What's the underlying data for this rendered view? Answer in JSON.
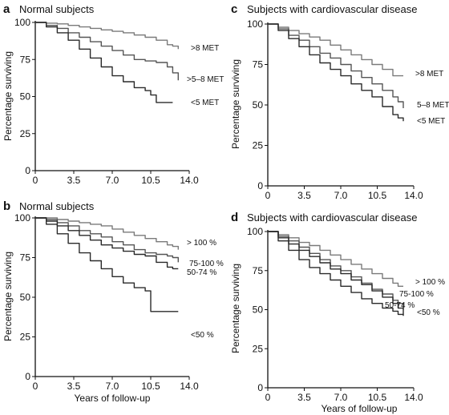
{
  "colors": {
    "axis": "#111111",
    "series_dark": "#2a2a2a",
    "series_mid": "#555555",
    "series_light": "#7a7a7a"
  },
  "chart_data": [
    {
      "id": "a",
      "panel_label": "a",
      "type": "line",
      "title": "Normal subjects",
      "xlabel": "",
      "ylabel": "Percentage surviving",
      "xlim": [
        0,
        14.0
      ],
      "ylim": [
        0,
        100
      ],
      "xticks": [
        "0",
        "3.5",
        "7.0",
        "10.5",
        "14.0"
      ],
      "yticks": [
        "0",
        "25",
        "50",
        "75",
        "100"
      ],
      "grid": false,
      "series": [
        {
          "name": ">8 MET",
          "x": [
            0,
            1,
            2,
            3,
            4,
            5,
            6,
            7,
            8,
            9,
            10,
            11,
            12,
            12.5,
            13
          ],
          "y": [
            100,
            99.5,
            99,
            98,
            97,
            96,
            95,
            94,
            93,
            91.5,
            90,
            88,
            85,
            84,
            82
          ]
        },
        {
          "name": ">5–8 MET",
          "x": [
            0,
            1,
            2,
            3,
            4,
            5,
            6,
            7,
            8,
            9,
            10,
            11,
            12,
            12.5,
            13
          ],
          "y": [
            100,
            98,
            96,
            93,
            90,
            87,
            84,
            81,
            78,
            75,
            74,
            73,
            70,
            66,
            61
          ]
        },
        {
          "name": "<5 MET",
          "x": [
            0,
            1,
            2,
            3,
            4,
            5,
            6,
            7,
            8,
            9,
            10,
            10.5,
            11,
            12,
            12.5
          ],
          "y": [
            100,
            97,
            93,
            88,
            82,
            76,
            70,
            64,
            60,
            56,
            54,
            51,
            46,
            46,
            46
          ]
        }
      ]
    },
    {
      "id": "b",
      "panel_label": "b",
      "type": "line",
      "title": "Normal subjects",
      "xlabel": "Years of follow-up",
      "ylabel": "Percentage surviving",
      "xlim": [
        0,
        14.0
      ],
      "ylim": [
        0,
        100
      ],
      "xticks": [
        "0",
        "3.5",
        "7.0",
        "10.5",
        "14.0"
      ],
      "yticks": [
        "0",
        "25",
        "50",
        "75",
        "100"
      ],
      "grid": false,
      "series": [
        {
          "name": "> 100 %",
          "x": [
            0,
            1,
            2,
            3,
            4,
            5,
            6,
            7,
            8,
            9,
            10,
            11,
            12,
            12.5,
            13
          ],
          "y": [
            100,
            100,
            99,
            98,
            97,
            96,
            95,
            93,
            91,
            89,
            87,
            85,
            83,
            82,
            80
          ]
        },
        {
          "name": "75-100 %",
          "x": [
            0,
            1,
            2,
            3,
            4,
            5,
            6,
            7,
            8,
            9,
            10,
            11,
            12,
            12.5,
            13
          ],
          "y": [
            100,
            99,
            97,
            95,
            92,
            90,
            88,
            85,
            83,
            80,
            78,
            77,
            76,
            75,
            72
          ]
        },
        {
          "name": "50-74 %",
          "x": [
            0,
            1,
            2,
            3,
            4,
            5,
            6,
            7,
            8,
            9,
            10,
            11,
            12,
            12.5,
            13
          ],
          "y": [
            100,
            98,
            95,
            92,
            89,
            86,
            83,
            81,
            79,
            77,
            76,
            72,
            69,
            68,
            68
          ]
        },
        {
          "name": "<50 %",
          "x": [
            0,
            1,
            2,
            3,
            4,
            5,
            6,
            7,
            8,
            9,
            10,
            10.5,
            11,
            12,
            13
          ],
          "y": [
            100,
            96,
            90,
            84,
            78,
            73,
            68,
            63,
            59,
            56,
            54,
            41,
            41,
            41,
            41
          ]
        }
      ]
    },
    {
      "id": "c",
      "panel_label": "c",
      "type": "line",
      "title": "Subjects with cardiovascular disease",
      "xlabel": "",
      "ylabel": "Percentage surviving",
      "xlim": [
        0,
        14.0
      ],
      "ylim": [
        0,
        100
      ],
      "xticks": [
        "0",
        "3.5",
        "7.0",
        "10.5",
        "14.0"
      ],
      "yticks": [
        "0",
        "25",
        "50",
        "75",
        "100"
      ],
      "grid": false,
      "series": [
        {
          "name": ">8 MET",
          "x": [
            0,
            1,
            2,
            3,
            4,
            5,
            6,
            7,
            8,
            9,
            10,
            11,
            12,
            12.5,
            13
          ],
          "y": [
            100,
            98,
            96,
            94,
            92,
            90,
            87,
            84,
            81,
            78,
            75,
            72,
            68,
            68,
            68
          ]
        },
        {
          "name": "5–8 MET",
          "x": [
            0,
            1,
            2,
            3,
            4,
            5,
            6,
            7,
            8,
            9,
            10,
            11,
            12,
            12.5,
            13
          ],
          "y": [
            100,
            97,
            93,
            90,
            86,
            82,
            79,
            75,
            71,
            67,
            63,
            59,
            55,
            52,
            48
          ]
        },
        {
          "name": "<5 MET",
          "x": [
            0,
            1,
            2,
            3,
            4,
            5,
            6,
            7,
            8,
            9,
            10,
            11,
            12,
            12.5,
            13
          ],
          "y": [
            100,
            96,
            91,
            86,
            81,
            76,
            72,
            68,
            63,
            59,
            55,
            49,
            44,
            42,
            40
          ]
        }
      ]
    },
    {
      "id": "d",
      "panel_label": "d",
      "type": "line",
      "title": "Subjects with cardiovascular disease",
      "xlabel": "Years of follow-up",
      "ylabel": "Percentage surviving",
      "xlim": [
        0,
        14.0
      ],
      "ylim": [
        0,
        100
      ],
      "xticks": [
        "0",
        "3.5",
        "7.0",
        "10.5",
        "14.0"
      ],
      "yticks": [
        "0",
        "25",
        "50",
        "75",
        "100"
      ],
      "grid": false,
      "series": [
        {
          "name": "> 100 %",
          "x": [
            0,
            1,
            2,
            3,
            4,
            5,
            6,
            7,
            8,
            9,
            10,
            11,
            12,
            12.5,
            13
          ],
          "y": [
            100,
            98,
            96,
            93,
            91,
            88,
            85,
            82,
            79,
            76,
            73,
            70,
            67,
            65,
            65
          ]
        },
        {
          "name": "75-100 %",
          "x": [
            0,
            1,
            2,
            3,
            4,
            5,
            6,
            7,
            8,
            9,
            10,
            11,
            12,
            12.5,
            13
          ],
          "y": [
            100,
            97,
            94,
            90,
            86,
            82,
            78,
            75,
            71,
            67,
            63,
            60,
            56,
            54,
            50
          ]
        },
        {
          "name": "50-74 %",
          "x": [
            0,
            1,
            2,
            3,
            4,
            5,
            6,
            7,
            8,
            9,
            10,
            11,
            12,
            12.5,
            13
          ],
          "y": [
            100,
            96,
            92,
            88,
            84,
            80,
            76,
            73,
            69,
            66,
            62,
            58,
            54,
            51,
            47
          ]
        },
        {
          "name": "<50 %",
          "x": [
            0,
            1,
            2,
            3,
            4,
            5,
            6,
            7,
            8,
            9,
            10,
            11,
            12,
            12.5,
            13
          ],
          "y": [
            100,
            94,
            88,
            82,
            77,
            73,
            69,
            65,
            61,
            57,
            54,
            51,
            49,
            47,
            46
          ]
        }
      ]
    }
  ]
}
